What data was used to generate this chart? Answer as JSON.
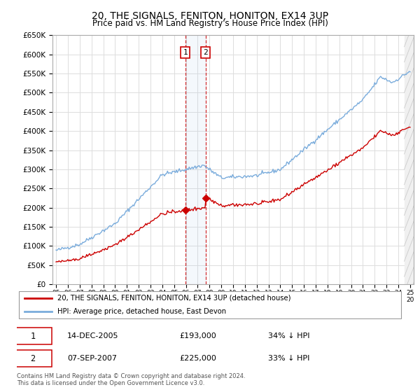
{
  "title": "20, THE SIGNALS, FENITON, HONITON, EX14 3UP",
  "subtitle": "Price paid vs. HM Land Registry's House Price Index (HPI)",
  "ylabel_ticks": [
    "£0",
    "£50K",
    "£100K",
    "£150K",
    "£200K",
    "£250K",
    "£300K",
    "£350K",
    "£400K",
    "£450K",
    "£500K",
    "£550K",
    "£600K",
    "£650K"
  ],
  "ytick_values": [
    0,
    50000,
    100000,
    150000,
    200000,
    250000,
    300000,
    350000,
    400000,
    450000,
    500000,
    550000,
    600000,
    650000
  ],
  "ylim": [
    0,
    650000
  ],
  "xlim_start": 1994.7,
  "xlim_end": 2025.3,
  "background_color": "#ffffff",
  "grid_color": "#dddddd",
  "hpi_color": "#7aacdc",
  "price_color": "#cc0000",
  "sale1_date": "14-DEC-2005",
  "sale1_price": "£193,000",
  "sale1_pct": "34% ↓ HPI",
  "sale1_year": 2005.95,
  "sale1_value": 193000,
  "sale2_date": "07-SEP-2007",
  "sale2_price": "£225,000",
  "sale2_pct": "33% ↓ HPI",
  "sale2_year": 2007.68,
  "sale2_value": 225000,
  "legend_line1": "20, THE SIGNALS, FENITON, HONITON, EX14 3UP (detached house)",
  "legend_line2": "HPI: Average price, detached house, East Devon",
  "footer1": "Contains HM Land Registry data © Crown copyright and database right 2024.",
  "footer2": "This data is licensed under the Open Government Licence v3.0."
}
